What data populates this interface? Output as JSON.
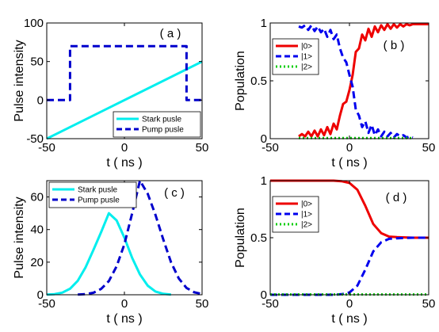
{
  "chart_data": [
    {
      "type": "line",
      "panel_label": "( a )",
      "xlabel": "t ( ns )",
      "ylabel": "Pulse intensity",
      "xlim": [
        -50,
        50
      ],
      "ylim": [
        -50,
        100
      ],
      "xticks": [
        "-50",
        "0",
        "50"
      ],
      "yticks": [
        "-50",
        "0",
        "50",
        "100"
      ],
      "legend": {
        "placement": "bottom-right"
      },
      "series": [
        {
          "name": "Stark pusle",
          "color": "#00eeee",
          "style": "solid",
          "x": [
            -50,
            50
          ],
          "y": [
            -50,
            50
          ]
        },
        {
          "name": "Pump pusle",
          "color": "#0000cc",
          "style": "dashed",
          "x": [
            -50,
            -35,
            -35,
            40,
            40,
            50
          ],
          "y": [
            0,
            0,
            70,
            70,
            0,
            0
          ]
        }
      ]
    },
    {
      "type": "line",
      "panel_label": "( b )",
      "xlabel": "t ( ns )",
      "ylabel": "Population",
      "xlim": [
        -50,
        50
      ],
      "ylim": [
        0,
        1
      ],
      "xticks": [
        "-50",
        "0",
        "50"
      ],
      "yticks": [
        "0",
        "0.5",
        "1"
      ],
      "legend": {
        "placement": "top-left"
      },
      "series": [
        {
          "name": "|0>",
          "color": "#ee0000",
          "style": "solid",
          "x": [
            -32,
            -30,
            -28,
            -26,
            -24,
            -22,
            -20,
            -18,
            -16,
            -14,
            -12,
            -10,
            -8,
            -6,
            -4,
            -2,
            0,
            2,
            4,
            6,
            8,
            10,
            12,
            14,
            16,
            18,
            20,
            22,
            24,
            26,
            28,
            30,
            32,
            34,
            36,
            38,
            40,
            42,
            44,
            46,
            48,
            50
          ],
          "y": [
            0.02,
            0.04,
            0.02,
            0.06,
            0.02,
            0.07,
            0.02,
            0.08,
            0.03,
            0.1,
            0.04,
            0.13,
            0.08,
            0.2,
            0.3,
            0.32,
            0.42,
            0.55,
            0.75,
            0.78,
            0.9,
            0.85,
            0.95,
            0.88,
            0.97,
            0.92,
            0.98,
            0.94,
            0.99,
            0.95,
            0.99,
            0.96,
            0.99,
            0.97,
            0.99,
            0.98,
            0.99,
            0.99,
            0.99,
            0.99,
            0.99,
            0.99
          ]
        },
        {
          "name": "|1>",
          "color": "#0000ee",
          "style": "dashed",
          "x": [
            -32,
            -30,
            -28,
            -26,
            -24,
            -22,
            -20,
            -18,
            -16,
            -14,
            -12,
            -10,
            -8,
            -6,
            -4,
            -2,
            0,
            2,
            4,
            6,
            8,
            10,
            12,
            14,
            16,
            18,
            20,
            22,
            24,
            26,
            28,
            30,
            32,
            34,
            36,
            38,
            40
          ],
          "y": [
            0.97,
            0.96,
            0.98,
            0.94,
            0.98,
            0.93,
            0.97,
            0.92,
            0.95,
            0.88,
            0.94,
            0.86,
            0.9,
            0.78,
            0.7,
            0.66,
            0.55,
            0.45,
            0.25,
            0.2,
            0.1,
            0.15,
            0.05,
            0.12,
            0.03,
            0.08,
            0.02,
            0.06,
            0.02,
            0.05,
            0.01,
            0.04,
            0.02,
            0.03,
            0.01,
            0.02,
            0.01
          ]
        },
        {
          "name": "|2>",
          "color": "#00cc00",
          "style": "dotted",
          "x": [
            -32,
            40
          ],
          "y": [
            0.005,
            0.005
          ]
        }
      ]
    },
    {
      "type": "line",
      "panel_label": "( c )",
      "xlabel": "t ( ns )",
      "ylabel": "Pulse intensity",
      "xlim": [
        -50,
        50
      ],
      "ylim": [
        0,
        70
      ],
      "xticks": [
        "-50",
        "0",
        "50"
      ],
      "yticks": [
        "0",
        "20",
        "40",
        "60"
      ],
      "legend": {
        "placement": "top-left"
      },
      "series": [
        {
          "name": "Stark pusle",
          "color": "#00eeee",
          "style": "solid",
          "x": [
            -50,
            -45,
            -40,
            -35,
            -30,
            -25,
            -20,
            -15,
            -10,
            -5,
            0,
            5,
            10,
            15,
            20,
            25,
            30
          ],
          "y": [
            0.1,
            0.4,
            1.3,
            3.7,
            8.6,
            16.8,
            27.4,
            38.4,
            50,
            45.6,
            35.0,
            22.6,
            12.5,
            5.6,
            2.0,
            0.6,
            0.1
          ]
        },
        {
          "name": "Pump pusle",
          "color": "#0000cc",
          "style": "dashed",
          "x": [
            -30,
            -25,
            -20,
            -15,
            -10,
            -5,
            0,
            5,
            10,
            15,
            20,
            25,
            30,
            35,
            40,
            45,
            50
          ],
          "y": [
            0.1,
            0.4,
            1.2,
            3.6,
            8.4,
            17.5,
            31.0,
            50.0,
            70.0,
            62.0,
            49.0,
            34.0,
            20.0,
            10.0,
            4.2,
            1.5,
            0.5
          ]
        }
      ]
    },
    {
      "type": "line",
      "panel_label": "( d )",
      "xlabel": "t ( ns )",
      "ylabel": "Population",
      "xlim": [
        -50,
        50
      ],
      "ylim": [
        0,
        1
      ],
      "xticks": [
        "-50",
        "0",
        "50"
      ],
      "yticks": [
        "0",
        "0.5",
        "1"
      ],
      "legend": {
        "placement": "top-left"
      },
      "series": [
        {
          "name": "|0>",
          "color": "#ee0000",
          "style": "solid",
          "x": [
            -50,
            -40,
            -30,
            -20,
            -10,
            -5,
            0,
            5,
            10,
            15,
            20,
            25,
            30,
            40,
            50
          ],
          "y": [
            1.0,
            1.0,
            1.0,
            1.0,
            1.0,
            0.995,
            0.98,
            0.92,
            0.78,
            0.62,
            0.54,
            0.51,
            0.505,
            0.5,
            0.5
          ]
        },
        {
          "name": "|1>",
          "color": "#0000ee",
          "style": "dashed",
          "x": [
            -50,
            -40,
            -30,
            -20,
            -10,
            -5,
            0,
            5,
            10,
            15,
            20,
            25,
            30,
            40,
            50
          ],
          "y": [
            0.0,
            0.0,
            0.0,
            0.0,
            0.0,
            0.005,
            0.02,
            0.08,
            0.22,
            0.38,
            0.46,
            0.49,
            0.495,
            0.5,
            0.5
          ]
        },
        {
          "name": "|2>",
          "color": "#00cc00",
          "style": "dotted",
          "x": [
            -50,
            50
          ],
          "y": [
            0.003,
            0.003
          ]
        }
      ]
    }
  ]
}
